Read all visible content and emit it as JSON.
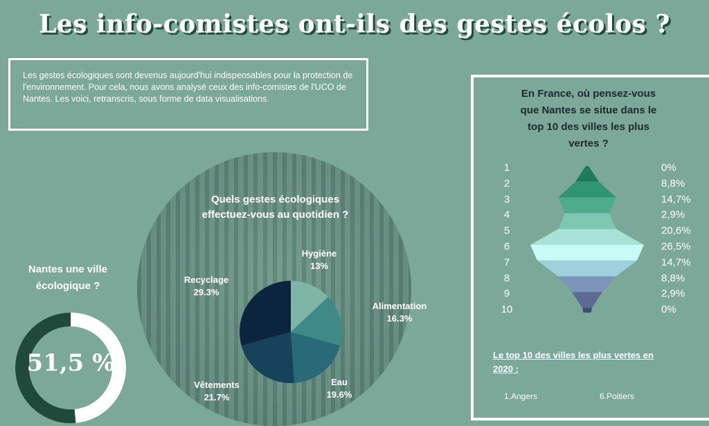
{
  "title": "Les info-comistes ont-ils des gestes écolos ?",
  "intro": "Les gestes écologiques sont devenus aujourd'hui indispensables pour la protection de l'environnement. Pour cela, nous avons analysé ceux des info-comistes de l'UCO de Nantes.  Les voici, retranscris, sous forme de data visualisations.",
  "pie": {
    "title_line1": "Quels gestes écologiques",
    "title_line2": "effectuez-vous au quotidien ?",
    "slices": [
      {
        "label": "Hygiène",
        "value_label": "13%",
        "value": 13,
        "color": "#7fb5a6"
      },
      {
        "label": "Alimentation",
        "value_label": "16.3%",
        "value": 16.3,
        "color": "#3f8a88"
      },
      {
        "label": "Eau",
        "value_label": "19.6%",
        "value": 19.6,
        "color": "#2a6a78"
      },
      {
        "label": "Vêtements",
        "value_label": "21.7%",
        "value": 21.7,
        "color": "#17435a"
      },
      {
        "label": "Recyclage",
        "value_label": "29.3%",
        "value": 29.3,
        "color": "#0b2440"
      }
    ]
  },
  "nantes": {
    "question_line1": "Nantes une ville",
    "question_line2": "écologique ?",
    "value": "51,5 %",
    "fraction": 0.515,
    "track_color": "#ffffff",
    "fill_color": "#1f4a3a"
  },
  "ranking": {
    "title_line1": "En France, où pensez-vous",
    "title_line2": "que Nantes se situe dans le",
    "title_line3": "top 10 des villes les plus",
    "title_line4": "vertes ?",
    "rows": [
      {
        "rank": "1",
        "pct": "0%",
        "value": 0,
        "color": "#1e7a5c"
      },
      {
        "rank": "2",
        "pct": "8,8%",
        "value": 8.8,
        "color": "#2f9470"
      },
      {
        "rank": "3",
        "pct": "14,7%",
        "value": 14.7,
        "color": "#4eab8c"
      },
      {
        "rank": "4",
        "pct": "2,9%",
        "value": 2.9,
        "color": "#7ec8b3"
      },
      {
        "rank": "5",
        "pct": "20,6%",
        "value": 20.6,
        "color": "#a6e2d6"
      },
      {
        "rank": "6",
        "pct": "26,5%",
        "value": 26.5,
        "color": "#c9fbf6"
      },
      {
        "rank": "7",
        "pct": "14,7%",
        "value": 14.7,
        "color": "#9fd0dd"
      },
      {
        "rank": "8",
        "pct": "8,8%",
        "value": 8.8,
        "color": "#7b94b8"
      },
      {
        "rank": "9",
        "pct": "2,9%",
        "value": 2.9,
        "color": "#5d6a93"
      },
      {
        "rank": "10",
        "pct": "0%",
        "value": 0,
        "color": "#3f4c6e"
      }
    ],
    "top10_title_line1": "Le top 10 des villes les plus vertes en",
    "top10_title_line2": "2020 :",
    "top10_item_1": "1.Angers",
    "top10_item_6": "6.Poitiers"
  }
}
